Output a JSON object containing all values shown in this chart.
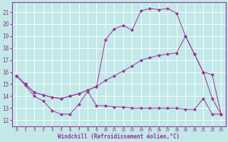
{
  "xlabel": "Windchill (Refroidissement éolien,°C)",
  "bg_color": "#c2e8e8",
  "line_color": "#993399",
  "grid_color": "#ffffff",
  "xlim": [
    -0.5,
    23.5
  ],
  "ylim": [
    11.5,
    21.8
  ],
  "yticks": [
    12,
    13,
    14,
    15,
    16,
    17,
    18,
    19,
    20,
    21
  ],
  "xticks": [
    0,
    1,
    2,
    3,
    4,
    5,
    6,
    7,
    8,
    9,
    10,
    11,
    12,
    13,
    14,
    15,
    16,
    17,
    18,
    19,
    20,
    21,
    22,
    23
  ],
  "line_low_x": [
    0,
    1,
    2,
    3,
    4,
    5,
    6,
    7,
    8,
    9,
    10,
    11,
    12,
    13,
    14,
    15,
    16,
    17,
    18,
    19,
    20,
    21,
    22,
    23
  ],
  "line_low_y": [
    15.7,
    14.9,
    14.0,
    13.6,
    12.8,
    12.5,
    12.5,
    13.3,
    14.4,
    13.2,
    13.2,
    13.1,
    13.1,
    13.0,
    13.0,
    13.0,
    13.0,
    13.0,
    13.0,
    12.9,
    12.9,
    13.8,
    12.5,
    12.5
  ],
  "line_mid_x": [
    0,
    1,
    2,
    3,
    4,
    5,
    6,
    7,
    8,
    9,
    10,
    11,
    12,
    13,
    14,
    15,
    16,
    17,
    18,
    19,
    20,
    21,
    22,
    23
  ],
  "line_mid_y": [
    15.7,
    15.0,
    14.3,
    14.1,
    13.9,
    13.8,
    14.0,
    14.2,
    14.5,
    14.8,
    15.3,
    15.7,
    16.1,
    16.5,
    17.0,
    17.2,
    17.4,
    17.5,
    17.6,
    19.0,
    17.5,
    16.0,
    15.8,
    12.5
  ],
  "line_high_x": [
    0,
    1,
    2,
    3,
    4,
    5,
    6,
    7,
    8,
    9,
    10,
    11,
    12,
    13,
    14,
    15,
    16,
    17,
    18,
    19,
    20,
    21,
    22,
    23
  ],
  "line_high_y": [
    15.7,
    15.0,
    14.3,
    14.1,
    13.9,
    13.8,
    14.0,
    14.2,
    14.5,
    14.8,
    18.7,
    19.6,
    19.9,
    19.5,
    21.1,
    21.3,
    21.2,
    21.3,
    20.9,
    19.0,
    17.5,
    16.0,
    13.8,
    12.5
  ]
}
